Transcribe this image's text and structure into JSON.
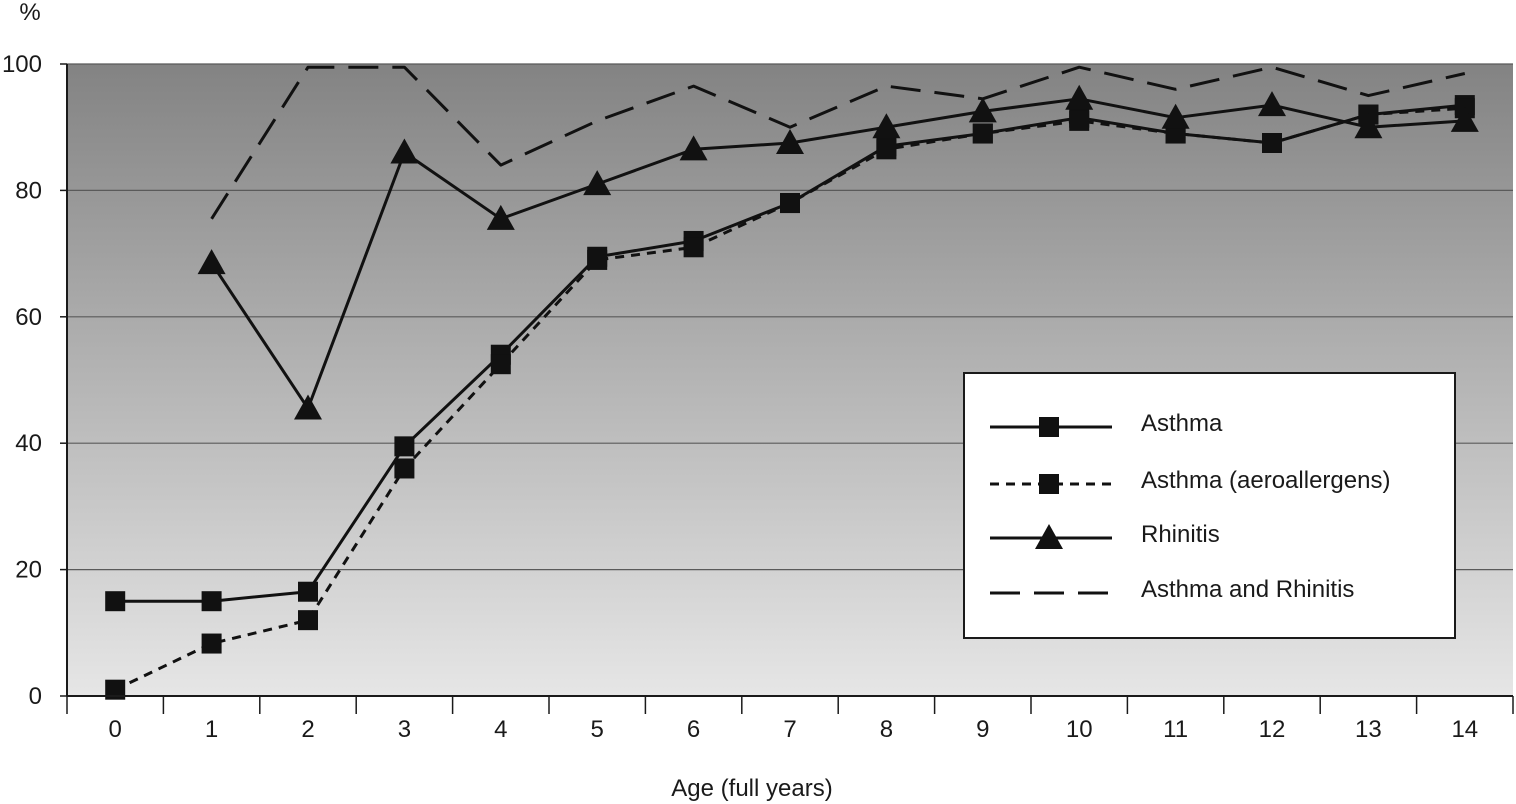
{
  "chart_data": {
    "type": "line",
    "xlabel": "Age (full years)",
    "ylabel": "%",
    "x": [
      0,
      1,
      2,
      3,
      4,
      5,
      6,
      7,
      8,
      9,
      10,
      11,
      12,
      13,
      14
    ],
    "x_tick_labels": [
      "0",
      "1",
      "2",
      "3",
      "4",
      "5",
      "6",
      "7",
      "8",
      "9",
      "10",
      "11",
      "12",
      "13",
      "14"
    ],
    "ylim": [
      0,
      100
    ],
    "y_ticks": [
      0,
      20,
      40,
      60,
      80,
      100
    ],
    "y_tick_labels": [
      "0",
      "20",
      "40",
      "60",
      "80",
      "100"
    ],
    "grid": true,
    "legend_position": "right",
    "background": "gradient gray (dark top, light bottom)",
    "series": [
      {
        "name": "Asthma",
        "line_style": "solid",
        "marker": "square",
        "values": [
          15,
          15,
          16.5,
          39.5,
          54,
          69.5,
          72,
          78,
          87,
          89,
          91.5,
          89,
          87.5,
          92,
          93.5
        ]
      },
      {
        "name": "Asthma (aeroallergens)",
        "line_style": "dotted",
        "marker": "square",
        "values": [
          1,
          8.3,
          12,
          36,
          52.5,
          69,
          71,
          78,
          86.5,
          89,
          91,
          89,
          87.5,
          92,
          93
        ]
      },
      {
        "name": "Rhinitis",
        "line_style": "solid",
        "marker": "triangle",
        "values": [
          null,
          68.5,
          45.5,
          86,
          75.5,
          81,
          86.5,
          87.5,
          90,
          92.5,
          94.5,
          91.5,
          93.5,
          90,
          91
        ]
      },
      {
        "name": "Asthma and Rhinitis",
        "line_style": "dashed",
        "marker": "none",
        "values": [
          null,
          75.5,
          99.5,
          99.5,
          84,
          91,
          96.5,
          90,
          96.5,
          94.5,
          99.5,
          96,
          99.5,
          95,
          98.5
        ]
      }
    ]
  }
}
